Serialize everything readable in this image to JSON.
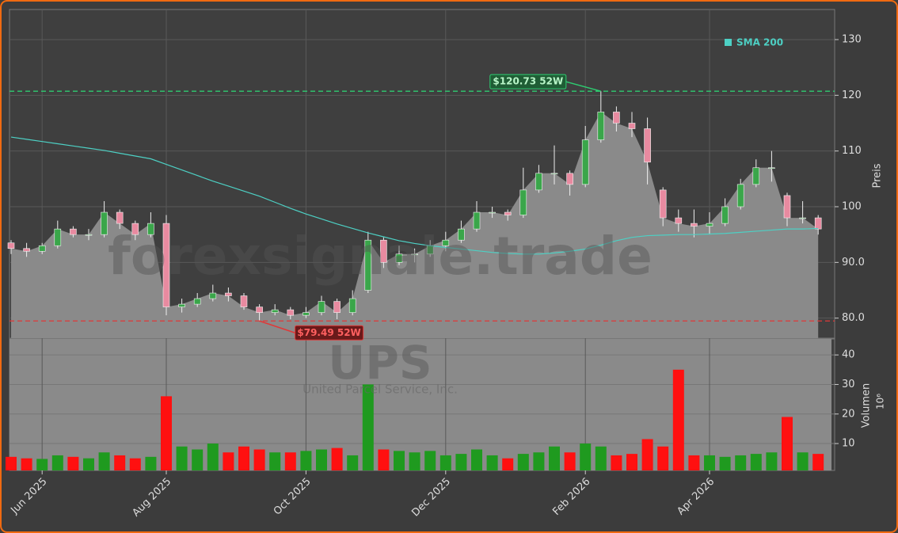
{
  "chart_data": {
    "type": "candlestick",
    "watermark": "forexsignale.trade",
    "symbol": "UPS",
    "company": "United Parcel Service, Inc.",
    "y_label": "Preis",
    "volume_label": "Volumen",
    "volume_unit": "10⁶",
    "categories": [
      null,
      null,
      "Jun 2025",
      null,
      null,
      null,
      null,
      null,
      null,
      null,
      "Aug 2025",
      null,
      null,
      null,
      null,
      null,
      null,
      null,
      null,
      "Oct 2025",
      null,
      null,
      null,
      null,
      null,
      null,
      null,
      null,
      "Dec 2025",
      null,
      null,
      null,
      null,
      null,
      null,
      null,
      null,
      "Feb 2026",
      null,
      null,
      null,
      null,
      null,
      null,
      null,
      "Apr 2026",
      null,
      null,
      null,
      null,
      null,
      null,
      null
    ],
    "open": [
      93.5,
      92.5,
      92,
      93,
      96,
      95,
      95,
      99,
      97,
      95,
      97,
      82,
      82.5,
      83.5,
      84.5,
      84,
      82,
      81,
      81.5,
      80.5,
      81,
      83,
      81,
      85,
      94,
      90,
      91.5,
      91.5,
      93,
      94,
      96,
      99,
      99,
      98.5,
      103,
      106,
      106,
      104,
      112,
      117,
      115,
      114,
      103,
      98,
      97,
      96.5,
      97,
      100,
      104,
      107,
      102,
      98,
      98
    ],
    "high": [
      94,
      93.5,
      93.5,
      97.5,
      96.5,
      96,
      101,
      99.5,
      97.5,
      99,
      98.5,
      83.5,
      84.5,
      86,
      85.5,
      84.5,
      82.5,
      82.5,
      82,
      82,
      84,
      83.5,
      85,
      95.5,
      94.5,
      93,
      92.5,
      94,
      95.5,
      97.5,
      101,
      100,
      99.5,
      107,
      107.5,
      111,
      106.5,
      114.5,
      120.73,
      118,
      117,
      116,
      103.5,
      99.5,
      99.5,
      99,
      101.5,
      105,
      108.5,
      110,
      102.5,
      101,
      98.5
    ],
    "low": [
      91.5,
      91,
      91.5,
      92.5,
      94.5,
      94,
      94.5,
      96,
      94,
      94.5,
      80.5,
      81,
      82,
      83,
      83,
      81.5,
      79.49,
      80.5,
      79.8,
      80,
      80.5,
      79.8,
      80.5,
      84.5,
      89,
      89.5,
      90,
      91,
      92,
      93.5,
      95.5,
      98,
      97.5,
      98,
      102.5,
      104,
      102,
      103.5,
      111.5,
      113.5,
      112.5,
      104,
      96.5,
      95.5,
      94.5,
      95,
      96.5,
      99.5,
      103.5,
      104.5,
      96.5,
      97,
      95
    ],
    "close": [
      92.5,
      92,
      93,
      96,
      95,
      95,
      99,
      97,
      95,
      97,
      82,
      82.5,
      83.5,
      84.5,
      84,
      82,
      81,
      81.5,
      80.5,
      81,
      83,
      81,
      83.5,
      94,
      90,
      91.5,
      91.5,
      93,
      94,
      96,
      99,
      99,
      98.5,
      103,
      106,
      106,
      104,
      112,
      117,
      115,
      114,
      108,
      98,
      97,
      96.5,
      97,
      100,
      104,
      107,
      107,
      98,
      98,
      96
    ],
    "volume": [
      5.5,
      5,
      4.8,
      6,
      5.5,
      5,
      7,
      6,
      5,
      5.5,
      26,
      9,
      8,
      10,
      7,
      9,
      8,
      7,
      7,
      7.5,
      8,
      8.5,
      6,
      30,
      8,
      7.5,
      7,
      7.5,
      6,
      6.5,
      8,
      6,
      5,
      6.5,
      7,
      9,
      7,
      10,
      9,
      6,
      6.5,
      11.5,
      9,
      35,
      6,
      6,
      5.5,
      6,
      6.5,
      7,
      19,
      7,
      6.5
    ],
    "sma": {
      "name": "SMA 200",
      "color": "#4dd0c4",
      "values": [
        112.5,
        112.1,
        111.7,
        111.3,
        110.9,
        110.5,
        110.1,
        109.6,
        109.1,
        108.6,
        107.6,
        106.6,
        105.6,
        104.6,
        103.7,
        102.8,
        101.9,
        100.8,
        99.7,
        98.7,
        97.8,
        96.9,
        96.1,
        95.3,
        94.6,
        93.9,
        93.4,
        93,
        92.7,
        92.4,
        92.1,
        91.8,
        91.6,
        91.5,
        91.5,
        91.7,
        92,
        92.4,
        93.1,
        93.9,
        94.5,
        94.8,
        94.9,
        95,
        95,
        95.1,
        95.2,
        95.4,
        95.6,
        95.8,
        96,
        96,
        96.1
      ]
    },
    "up_color": "#3aa64a",
    "down_color": "#e88aa0",
    "volume_up_color": "#1f9a1f",
    "volume_down_color": "#ff1010",
    "area_color": "#8a8a8a",
    "ylim": [
      76.4,
      135.4
    ],
    "yticks": [
      {
        "value": 80,
        "label": "80.0"
      },
      {
        "value": 90,
        "label": "90.0"
      },
      100,
      110,
      120,
      130
    ],
    "volume_ylim": [
      0.9,
      45.4
    ],
    "volume_yticks": [
      10,
      20,
      30,
      40
    ],
    "grid": true,
    "annotations": [
      {
        "value": 120.73,
        "label": "$120.73 52W",
        "color": "#2ecc71",
        "index": 38
      },
      {
        "value": 79.49,
        "label": "$79.49 52W",
        "color": "#e03838",
        "index": 16
      }
    ]
  }
}
